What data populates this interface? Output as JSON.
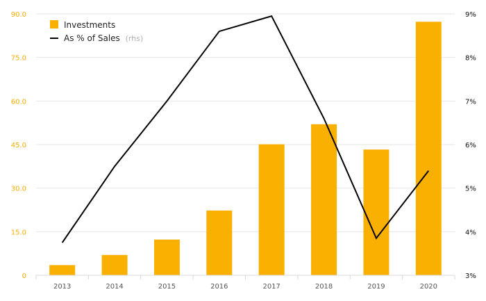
{
  "chart_data": {
    "type": "bar",
    "categories": [
      "2013",
      "2014",
      "2015",
      "2016",
      "2017",
      "2018",
      "2019",
      "2020"
    ],
    "series": [
      {
        "name": "Investments",
        "type": "bar",
        "axis": "left",
        "color": "#f9b000",
        "values": [
          3.5,
          7.0,
          12.3,
          22.3,
          45.1,
          52.0,
          43.3,
          87.3
        ]
      },
      {
        "name": "As % of Sales",
        "type": "line",
        "axis": "right",
        "color": "#000000",
        "values": [
          3.75,
          5.5,
          7.0,
          8.6,
          8.95,
          6.6,
          3.85,
          5.4
        ]
      }
    ],
    "legend_note": "(rhs)",
    "y_left": {
      "ylim": [
        0,
        90
      ],
      "ticks": [
        0,
        15,
        30,
        45,
        60,
        75,
        90
      ],
      "tick_labels": [
        "0",
        "15.0",
        "30.0",
        "45.0",
        "60.0",
        "75.0",
        "90.0"
      ],
      "tick_color": "#f5ad00"
    },
    "y_right": {
      "ylim": [
        3,
        9
      ],
      "ticks": [
        3,
        4,
        5,
        6,
        7,
        8,
        9
      ],
      "tick_labels": [
        "3%",
        "4%",
        "5%",
        "6%",
        "7%",
        "8%",
        "9%"
      ]
    },
    "grid": true,
    "legend_position": "top-left"
  }
}
